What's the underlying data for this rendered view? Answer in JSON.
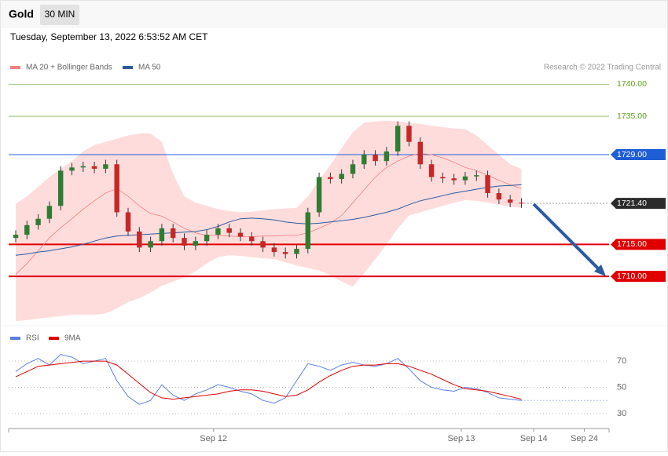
{
  "header": {
    "symbol": "Gold",
    "interval": "30 MIN",
    "timestamp": "Tuesday, September 13, 2022 6:53:52 AM CET",
    "credit": "Research © 2022 Trading Central"
  },
  "chart_data": [
    {
      "type": "candlestick",
      "xlim": [
        -0.63,
        52.8
      ],
      "ylim": [
        1702.3,
        1741.5
      ],
      "up_color": "#2e7d32",
      "down_color": "#c62828",
      "open": [
        1716,
        1716.5,
        1718,
        1719,
        1721,
        1726.5,
        1727,
        1727.2,
        1726.8,
        1727.5,
        1720,
        1717,
        1714.5,
        1715.5,
        1717.5,
        1716,
        1714.8,
        1715.5,
        1716.5,
        1717.5,
        1716.8,
        1716.2,
        1715.5,
        1714.5,
        1713.8,
        1713.5,
        1714.3,
        1720,
        1725.5,
        1725.2,
        1726,
        1727.5,
        1729,
        1728,
        1729.5,
        1733.5,
        1731,
        1727.5,
        1725.5,
        1725.3,
        1725,
        1725.6,
        1725.8,
        1723,
        1722,
        1721.5
      ],
      "high": [
        1717.2,
        1718.7,
        1719.7,
        1721.7,
        1727.2,
        1727.7,
        1727.9,
        1727.9,
        1728.2,
        1728.2,
        1720.7,
        1717.7,
        1716.2,
        1718.2,
        1718.2,
        1716.7,
        1716.2,
        1717.2,
        1718.2,
        1718.2,
        1717.5,
        1716.9,
        1716.2,
        1715.2,
        1714.5,
        1715,
        1720.7,
        1726.2,
        1726.2,
        1726.7,
        1728.2,
        1729.7,
        1729.7,
        1730.2,
        1734.2,
        1734.2,
        1731.7,
        1728.2,
        1726.2,
        1726,
        1726.3,
        1726.5,
        1726.5,
        1723.7,
        1722.7,
        1722.2
      ],
      "low": [
        1715.3,
        1715.8,
        1717.3,
        1718.3,
        1720.3,
        1725.8,
        1726.3,
        1726.1,
        1726.1,
        1719.3,
        1716.3,
        1713.8,
        1713.8,
        1714.8,
        1715.3,
        1714.1,
        1714.1,
        1714.8,
        1715.8,
        1716.1,
        1715.5,
        1714.8,
        1713.8,
        1713.1,
        1712.8,
        1712.8,
        1713.6,
        1719.3,
        1724.5,
        1724.5,
        1725.3,
        1726.8,
        1727.3,
        1727.3,
        1728.8,
        1730.3,
        1726.8,
        1724.8,
        1724.6,
        1724.3,
        1724.3,
        1724.9,
        1722.3,
        1721.3,
        1720.8,
        1720.7
      ],
      "close": [
        1716.5,
        1718,
        1719,
        1721,
        1726.5,
        1727,
        1727.2,
        1726.8,
        1727.5,
        1720,
        1717,
        1714.5,
        1715.5,
        1717.5,
        1716,
        1714.8,
        1715.5,
        1716.5,
        1717.5,
        1716.8,
        1716.2,
        1715.5,
        1714.5,
        1713.8,
        1713.5,
        1714.3,
        1720,
        1725.5,
        1725.2,
        1726,
        1727.5,
        1729,
        1728,
        1729.5,
        1733.5,
        1731,
        1727.5,
        1725.5,
        1725.3,
        1725,
        1725.6,
        1725.8,
        1723,
        1722,
        1721.5,
        1721.4
      ],
      "series": [
        {
          "name": "MA 20 + Bollinger Bands",
          "color": "#f08080",
          "band_color": "#ffdcdc",
          "values": [
            1710.3,
            1712,
            1714,
            1716,
            1717.6,
            1719,
            1720.5,
            1721.8,
            1723,
            1723.7,
            1722.5,
            1721,
            1719.8,
            1719.4,
            1718.5,
            1717.5,
            1716.8,
            1716.4,
            1716.4,
            1716.3,
            1716.2,
            1716.2,
            1716.3,
            1716.3,
            1716.4,
            1716.4,
            1716.8,
            1717.5,
            1718.3,
            1719.5,
            1721.5,
            1723.5,
            1725.5,
            1727,
            1728,
            1728.8,
            1729.2,
            1729,
            1728.5,
            1727.8,
            1727,
            1726.5,
            1725.8,
            1725,
            1724.3,
            1723.7
          ],
          "upper": [
            1721.3,
            1722.5,
            1724,
            1725.5,
            1726.8,
            1728,
            1729.5,
            1730.5,
            1731,
            1731.5,
            1732,
            1732.3,
            1732.3,
            1731,
            1726,
            1722.5,
            1721.5,
            1721,
            1720.5,
            1720.2,
            1720,
            1720.1,
            1720.3,
            1720.5,
            1720.6,
            1720.7,
            1722.5,
            1725,
            1727.4,
            1730,
            1732.5,
            1734,
            1734.2,
            1734.3,
            1734.2,
            1734,
            1733.8,
            1733.5,
            1733.3,
            1733.1,
            1733,
            1732,
            1730.5,
            1729,
            1727.5,
            1726.8
          ],
          "lower": [
            1703,
            1703.2,
            1703.4,
            1703.6,
            1703.8,
            1704,
            1704,
            1704,
            1704.2,
            1705,
            1706,
            1706.6,
            1707.5,
            1708.5,
            1709.2,
            1709.8,
            1710.8,
            1712,
            1713,
            1713.3,
            1713.2,
            1713,
            1712.8,
            1712.7,
            1712.2,
            1711.7,
            1711.3,
            1710.9,
            1710.2,
            1709.2,
            1708.4,
            1710.5,
            1712.7,
            1715,
            1717.5,
            1719.5,
            1720,
            1720.5,
            1721,
            1721.5,
            1721.9,
            1721.8,
            1721.5,
            1721.2,
            1720.9,
            1720.7
          ]
        },
        {
          "name": "MA 50",
          "color": "#2c5aa0",
          "values": [
            1713.3,
            1713.5,
            1713.8,
            1714,
            1714.3,
            1714.6,
            1715,
            1715.5,
            1716,
            1716.3,
            1716.4,
            1716.5,
            1716.6,
            1716.7,
            1716.8,
            1716.9,
            1717,
            1717.3,
            1717.8,
            1718.5,
            1719,
            1719.1,
            1719,
            1718.8,
            1718.5,
            1718.3,
            1718.2,
            1718.3,
            1718.5,
            1718.7,
            1718.9,
            1719.2,
            1719.6,
            1720,
            1720.5,
            1721.2,
            1721.8,
            1722.2,
            1722.6,
            1723,
            1723.3,
            1723.6,
            1723.9,
            1724.1,
            1724.2,
            1724.3
          ]
        }
      ],
      "levels": [
        {
          "value": 1740,
          "label": "1740.00",
          "color": "#5a9e1a",
          "box": false,
          "width": 0.6,
          "dotted": false
        },
        {
          "value": 1735,
          "label": "1735.00",
          "color": "#5a9e1a",
          "box": false,
          "width": 0.6,
          "dotted": false
        },
        {
          "value": 1729,
          "label": "1729.00",
          "color": "#1f5fd6",
          "box": true,
          "width": 1,
          "dotted": false
        },
        {
          "value": 1721.4,
          "label": "1721.40",
          "color": "#2b2b2b",
          "box": true,
          "width": 0.8,
          "dotted": true
        },
        {
          "value": 1715,
          "label": "1715.00",
          "color": "#e00000",
          "box": true,
          "width": 2,
          "dotted": false
        },
        {
          "value": 1710,
          "label": "1710.00",
          "color": "#e00000",
          "box": true,
          "width": 2,
          "dotted": false
        }
      ]
    },
    {
      "type": "line",
      "xlim": [
        -0.63,
        52.8
      ],
      "ylim": [
        22.2,
        79
      ],
      "yticks": [
        70,
        50,
        30
      ],
      "xticks": [
        {
          "value": 17.6,
          "label": "Sep 12"
        },
        {
          "value": 39.65,
          "label": "Sep 13"
        },
        {
          "value": 46.1,
          "label": "Sep 14"
        },
        {
          "value": 50.6,
          "label": "Sep 24"
        }
      ],
      "series": [
        {
          "name": "RSI",
          "color": "#5b7fe0",
          "values": [
            62,
            68,
            72,
            67,
            75,
            73,
            68,
            70,
            72,
            55,
            43,
            37,
            40,
            52,
            44,
            40,
            45,
            48,
            52,
            50,
            47,
            45,
            40,
            38,
            42,
            55,
            68,
            66,
            63,
            67,
            69,
            67,
            66,
            68,
            72,
            64,
            55,
            50,
            48,
            47,
            50,
            49,
            46,
            42,
            41,
            40
          ]
        },
        {
          "name": "9MA",
          "color": "#e00000",
          "values": [
            58,
            62,
            66,
            67,
            68,
            69,
            70,
            70,
            70,
            67,
            60,
            53,
            46,
            42,
            41,
            42,
            43,
            44,
            45,
            47,
            48,
            48,
            47,
            45,
            43,
            44,
            48,
            54,
            59,
            63,
            66,
            67,
            67,
            68,
            68,
            66,
            63,
            60,
            56,
            52,
            49,
            48,
            47,
            45,
            43,
            41
          ]
        }
      ]
    }
  ]
}
